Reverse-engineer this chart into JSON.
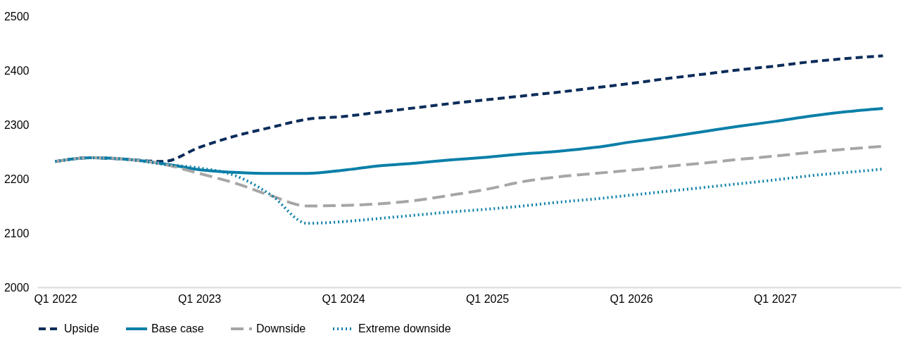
{
  "chart_data": {
    "type": "line",
    "categories": [
      "Q1 2022",
      null,
      null,
      null,
      "Q1 2023",
      null,
      null,
      null,
      "Q1 2024",
      null,
      null,
      null,
      "Q1 2025",
      null,
      null,
      null,
      "Q1 2026",
      null,
      null,
      null,
      "Q1 2027",
      null,
      null,
      null
    ],
    "series": [
      {
        "name": "Upside",
        "color": "#0b2c5a",
        "line_style": "dashed",
        "values": [
          2232,
          2239,
          2236,
          2232,
          2258,
          2279,
          2295,
          2310,
          2315,
          2323,
          2331,
          2339,
          2346,
          2353,
          2360,
          2368,
          2376,
          2385,
          2393,
          2401,
          2408,
          2416,
          2422,
          2427
        ]
      },
      {
        "name": "Base case",
        "color": "#0a7fa8",
        "line_style": "solid",
        "values": [
          2232,
          2239,
          2236,
          2228,
          2217,
          2212,
          2210,
          2210,
          2216,
          2224,
          2229,
          2235,
          2240,
          2246,
          2251,
          2258,
          2268,
          2277,
          2287,
          2297,
          2306,
          2316,
          2324,
          2330
        ]
      },
      {
        "name": "Downside",
        "color": "#a6a6a6",
        "line_style": "longdash",
        "values": [
          2232,
          2239,
          2236,
          2227,
          2210,
          2192,
          2169,
          2150,
          2151,
          2154,
          2160,
          2170,
          2181,
          2195,
          2204,
          2210,
          2216,
          2223,
          2229,
          2236,
          2242,
          2249,
          2255,
          2260
        ]
      },
      {
        "name": "Extreme downside",
        "color": "#0a7fa8",
        "line_style": "dotted",
        "values": [
          2232,
          2239,
          2236,
          2227,
          2220,
          2206,
          2170,
          2118,
          2121,
          2127,
          2133,
          2139,
          2144,
          2150,
          2157,
          2163,
          2170,
          2177,
          2184,
          2191,
          2198,
          2206,
          2212,
          2218
        ]
      }
    ],
    "ylim": [
      2000,
      2500
    ],
    "yticks": [
      2000,
      2100,
      2200,
      2300,
      2400,
      2500
    ],
    "grid": false,
    "legend": "bottom"
  }
}
